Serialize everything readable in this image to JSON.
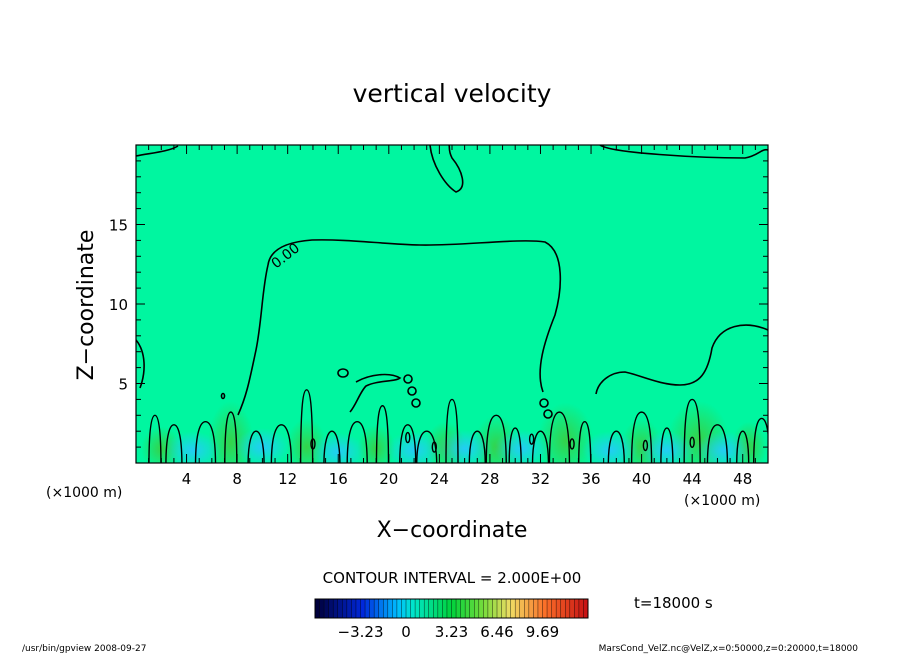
{
  "chart_data": {
    "type": "heatmap",
    "title": "vertical velocity",
    "xlabel": "X−coordinate",
    "ylabel": "Z−coordinate",
    "x_unit_left": "(×1000 m)",
    "x_unit_right": "(×1000 m)",
    "xlim": [
      0,
      50
    ],
    "ylim": [
      0,
      20
    ],
    "x_ticks": [
      4,
      8,
      12,
      16,
      20,
      24,
      28,
      32,
      36,
      40,
      44,
      48
    ],
    "y_ticks": [
      5,
      10,
      15
    ],
    "contour_label": "0.00",
    "contour_interval": "CONTOUR INTERVAL = 2.000E+00",
    "colorbar_ticks": [
      "−3.23",
      "0",
      "3.23",
      "6.46",
      "9.69"
    ],
    "colorbar_range": [
      -6.46,
      12.92
    ],
    "time_label": "t=18000 s",
    "footer_left": "/usr/bin/gpview   2008-09-27",
    "footer_right": "MarsCond_VelZ.nc@VelZ,x=0:50000,z=0:20000,t=18000",
    "colors": {
      "background_field": "#00f6a0",
      "contour_line": "#000000",
      "updraft": "#3ecc3a",
      "downdraft": "#2fd6ff"
    }
  }
}
